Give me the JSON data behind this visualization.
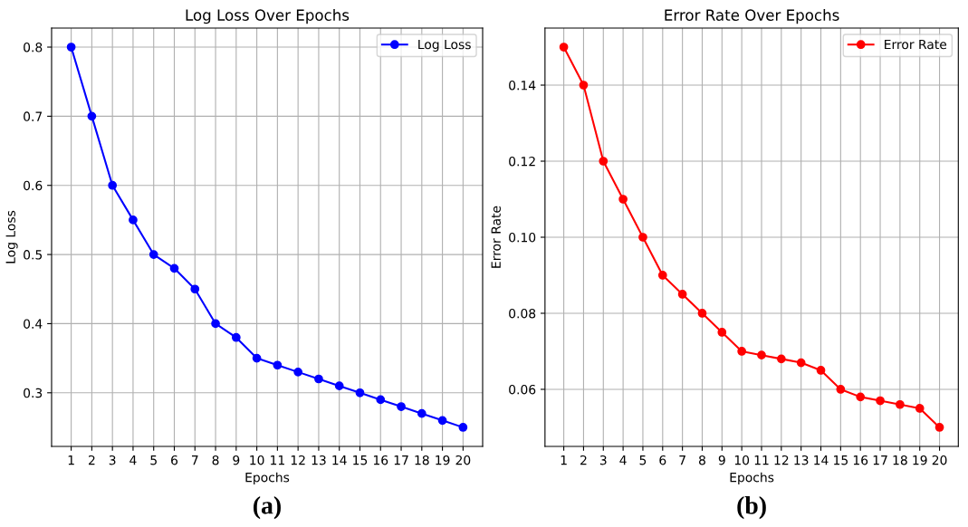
{
  "chart_data": [
    {
      "type": "line",
      "title": "Log Loss Over Epochs",
      "xlabel": "Epochs",
      "ylabel": "Log Loss",
      "x": [
        1,
        2,
        3,
        4,
        5,
        6,
        7,
        8,
        9,
        10,
        11,
        12,
        13,
        14,
        15,
        16,
        17,
        18,
        19,
        20
      ],
      "series": [
        {
          "name": "Log Loss",
          "color": "#0000ff",
          "values": [
            0.8,
            0.7,
            0.6,
            0.55,
            0.5,
            0.48,
            0.45,
            0.4,
            0.38,
            0.35,
            0.34,
            0.33,
            0.32,
            0.31,
            0.3,
            0.29,
            0.28,
            0.27,
            0.26,
            0.25
          ]
        }
      ],
      "xlim": [
        0.05,
        20.95
      ],
      "xticks": [
        1,
        2,
        3,
        4,
        5,
        6,
        7,
        8,
        9,
        10,
        11,
        12,
        13,
        14,
        15,
        16,
        17,
        18,
        19,
        20
      ],
      "ylim": [
        0.2225,
        0.8275
      ],
      "yticks": [
        0.3,
        0.4,
        0.5,
        0.6,
        0.7,
        0.8
      ],
      "grid": true,
      "legend": "top right",
      "marker": "circle",
      "line_style": "solid",
      "annotations": [
        "(a)"
      ]
    },
    {
      "type": "line",
      "title": "Error Rate Over Epochs",
      "xlabel": "Epochs",
      "ylabel": "Error Rate",
      "x": [
        1,
        2,
        3,
        4,
        5,
        6,
        7,
        8,
        9,
        10,
        11,
        12,
        13,
        14,
        15,
        16,
        17,
        18,
        19,
        20
      ],
      "series": [
        {
          "name": "Error Rate",
          "color": "#ff0000",
          "values": [
            0.15,
            0.14,
            0.12,
            0.11,
            0.1,
            0.09,
            0.085,
            0.08,
            0.075,
            0.07,
            0.069,
            0.068,
            0.067,
            0.065,
            0.06,
            0.058,
            0.057,
            0.056,
            0.055,
            0.05
          ]
        }
      ],
      "xlim": [
        0.05,
        20.95
      ],
      "xticks": [
        1,
        2,
        3,
        4,
        5,
        6,
        7,
        8,
        9,
        10,
        11,
        12,
        13,
        14,
        15,
        16,
        17,
        18,
        19,
        20
      ],
      "ylim": [
        0.045,
        0.155
      ],
      "yticks": [
        0.06,
        0.08,
        {
          "value": 0.1,
          "label": "0.10"
        },
        0.12,
        0.14
      ],
      "grid": true,
      "legend": "top right",
      "marker": "circle",
      "line_style": "solid",
      "annotations": [
        "(b)"
      ]
    }
  ]
}
